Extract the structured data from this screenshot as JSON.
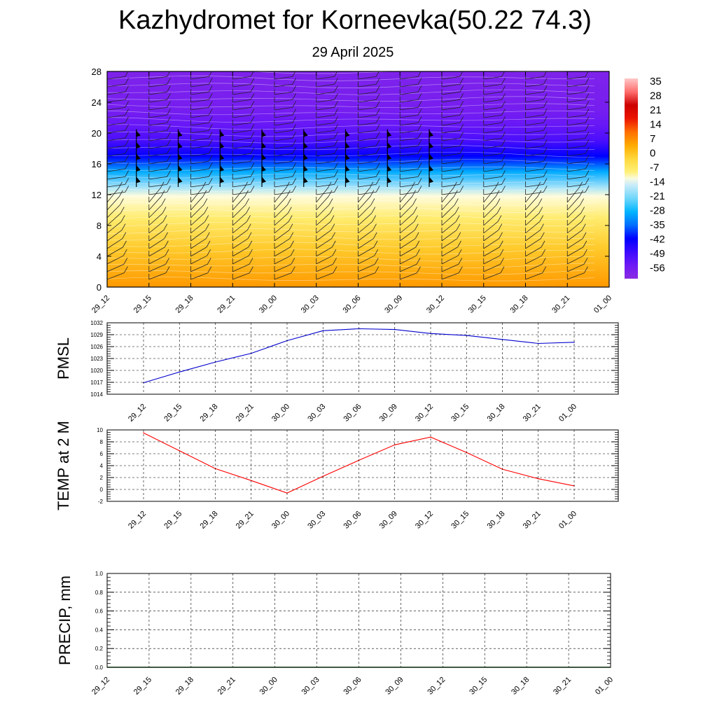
{
  "title": "Kazhydromet for Korneevka(50.22 74.3)",
  "subtitle": "29 April 2025",
  "chart_data": [
    {
      "type": "heatmap",
      "xticks": [
        "29_12",
        "29_15",
        "29_18",
        "29_21",
        "30_00",
        "30_03",
        "30_06",
        "30_09",
        "30_12",
        "30_15",
        "30_18",
        "30_21",
        "01_00"
      ],
      "ylim": [
        0,
        28
      ],
      "yticks": [
        "0",
        "4",
        "8",
        "12",
        "16",
        "20",
        "24",
        "28"
      ],
      "colorbar_labels": [
        "35",
        "28",
        "21",
        "14",
        "7",
        "0",
        "-7",
        "-14",
        "-21",
        "-28",
        "-35",
        "-42",
        "-49",
        "-56"
      ],
      "colorbar_range": [
        -63,
        42
      ],
      "level_temperature_profile": [
        {
          "level": 0,
          "temp": 9
        },
        {
          "level": 5,
          "temp": 2
        },
        {
          "level": 9,
          "temp": -6
        },
        {
          "level": 11.8,
          "temp": -10
        },
        {
          "level": 13,
          "temp": -17
        },
        {
          "level": 15,
          "temp": -29
        },
        {
          "level": 17,
          "temp": -42
        },
        {
          "level": 19,
          "temp": -51
        },
        {
          "level": 21,
          "temp": -55
        },
        {
          "level": 23,
          "temp": -58
        },
        {
          "level": 28,
          "temp": -60
        }
      ],
      "barb_levels": [
        1,
        2,
        3,
        4,
        5,
        6,
        7,
        8,
        9,
        10,
        11,
        12,
        13,
        14,
        15,
        16,
        17,
        18,
        19,
        20,
        21,
        22,
        23,
        24,
        25,
        26,
        27
      ],
      "pennant_times": [
        "29_15",
        "29_18",
        "29_21",
        "30_00",
        "30_03",
        "30_06",
        "30_09",
        "30_12"
      ],
      "pennant_levels": [
        13.5,
        15,
        16.5,
        18,
        19.5
      ]
    },
    {
      "type": "line",
      "ylabel": "PMSL",
      "xticks": [
        "29_12",
        "29_15",
        "29_18",
        "29_21",
        "30_00",
        "30_03",
        "30_06",
        "30_09",
        "30_12",
        "30_15",
        "30_18",
        "30_21",
        "01_00"
      ],
      "yticks": [
        "1014",
        "1017",
        "1020",
        "1023",
        "1026",
        "1029",
        "1032"
      ],
      "ylim": [
        1014,
        1032
      ],
      "series": [
        {
          "color": "#0000cc",
          "values": [
            1016.9,
            1019.6,
            1022.1,
            1024.3,
            1027.5,
            1030.0,
            1030.5,
            1030.3,
            1029.3,
            1028.8,
            1027.8,
            1026.8,
            1027.1
          ]
        }
      ]
    },
    {
      "type": "line",
      "ylabel": "TEMP at 2 M",
      "xticks": [
        "29_12",
        "29_15",
        "29_18",
        "29_21",
        "30_00",
        "30_03",
        "30_06",
        "30_09",
        "30_12",
        "30_15",
        "30_18",
        "30_21",
        "01_00"
      ],
      "yticks": [
        "-2",
        "0",
        "2",
        "4",
        "6",
        "8",
        "10"
      ],
      "ylim": [
        -2,
        10
      ],
      "series": [
        {
          "color": "#ff0000",
          "values": [
            9.5,
            6.5,
            3.5,
            1.5,
            -0.6,
            2.2,
            4.9,
            7.5,
            8.8,
            6.2,
            3.4,
            1.8,
            0.6
          ]
        }
      ]
    },
    {
      "type": "line",
      "ylabel": "PRECIP, mm",
      "xticks": [
        "29_12",
        "29_15",
        "29_18",
        "29_21",
        "30_00",
        "30_03",
        "30_06",
        "30_09",
        "30_12",
        "30_15",
        "30_18",
        "30_21",
        "01_00"
      ],
      "yticks": [
        "0.0",
        "0.2",
        "0.4",
        "0.6",
        "0.8",
        "1.0"
      ],
      "ylim": [
        0,
        1
      ],
      "series": [
        {
          "color": "#006400",
          "values": [
            0,
            0,
            0,
            0,
            0,
            0,
            0,
            0,
            0,
            0,
            0,
            0,
            0
          ]
        }
      ]
    }
  ]
}
